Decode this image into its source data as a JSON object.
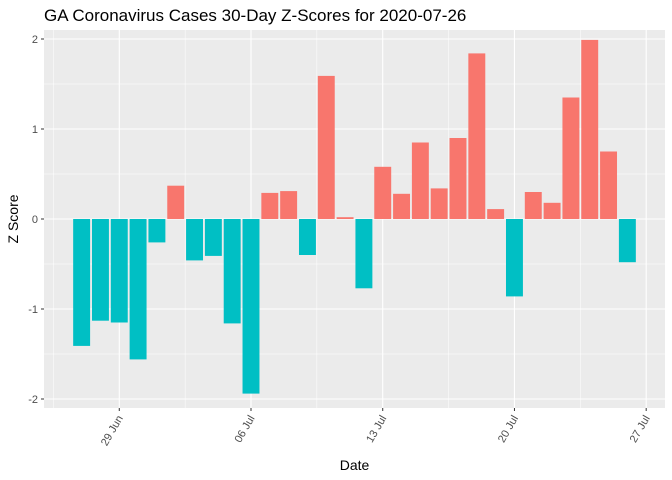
{
  "chart_data": {
    "type": "bar",
    "title": "GA Coronavirus Cases 30-Day Z-Scores for 2020-07-26",
    "xlabel": "Date",
    "ylabel": "Z Score",
    "ylim": [
      -2.1,
      2.1
    ],
    "y_ticks": [
      -2,
      -1,
      0,
      1,
      2
    ],
    "y_tick_labels": [
      "-2",
      "-1",
      "0",
      "1",
      "2"
    ],
    "x_ticks": [
      {
        "label": "29 Jun",
        "date": "2020-06-29"
      },
      {
        "label": "06 Jul",
        "date": "2020-07-06"
      },
      {
        "label": "13 Jul",
        "date": "2020-07-13"
      },
      {
        "label": "20 Jul",
        "date": "2020-07-20"
      },
      {
        "label": "27 Jul",
        "date": "2020-07-27"
      }
    ],
    "x_range": [
      "2020-06-25",
      "2020-07-28"
    ],
    "grid": true,
    "positive_color": "#F8766D",
    "negative_color": "#00BFC4",
    "background_color": "#EBEBEB",
    "grid_color": "#FFFFFF",
    "dates": [
      "2020-06-27",
      "2020-06-28",
      "2020-06-29",
      "2020-06-30",
      "2020-07-01",
      "2020-07-02",
      "2020-07-03",
      "2020-07-04",
      "2020-07-05",
      "2020-07-06",
      "2020-07-07",
      "2020-07-08",
      "2020-07-09",
      "2020-07-10",
      "2020-07-11",
      "2020-07-12",
      "2020-07-13",
      "2020-07-14",
      "2020-07-15",
      "2020-07-16",
      "2020-07-17",
      "2020-07-18",
      "2020-07-19",
      "2020-07-20",
      "2020-07-21",
      "2020-07-22",
      "2020-07-23",
      "2020-07-24",
      "2020-07-25",
      "2020-07-26"
    ],
    "values": [
      -1.41,
      -1.13,
      -1.15,
      -1.56,
      -0.26,
      0.37,
      -0.46,
      -0.41,
      -1.16,
      -1.94,
      0.29,
      0.31,
      -0.4,
      1.59,
      0.02,
      -0.77,
      0.58,
      0.28,
      0.85,
      0.34,
      0.9,
      1.84,
      0.11,
      -0.86,
      0.3,
      0.18,
      1.35,
      1.99,
      0.75,
      -0.48
    ]
  }
}
